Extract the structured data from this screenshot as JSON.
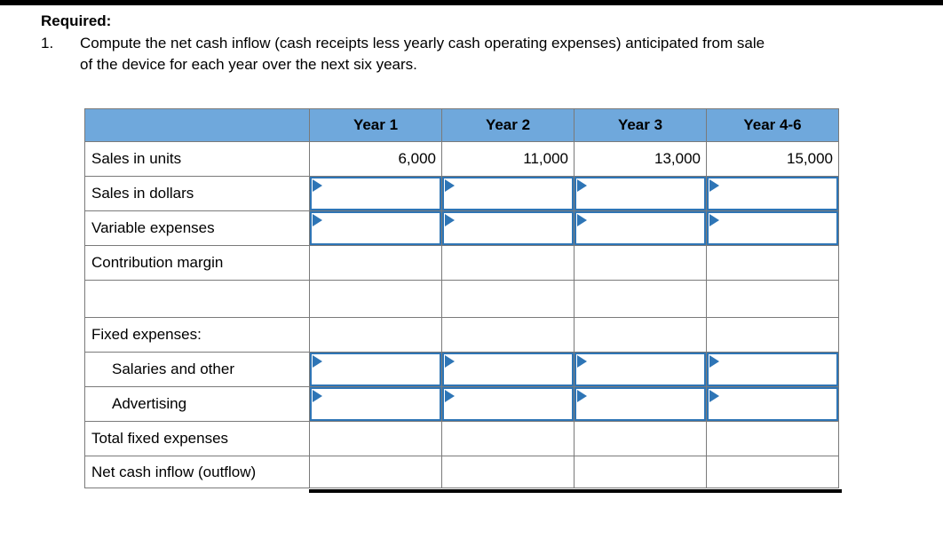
{
  "instructions": {
    "heading": "Required:",
    "item_number": "1.",
    "lines": [
      "Compute the net cash inflow (cash receipts less yearly cash operating expenses) anticipated from sale",
      "of the device for each year over the next six years."
    ]
  },
  "table": {
    "columns": [
      "",
      "Year 1",
      "Year 2",
      "Year 3",
      "Year 4-6"
    ],
    "rows": [
      {
        "label": "Sales in units",
        "cells": "text",
        "indent": false,
        "values": [
          "6,000",
          "11,000",
          "13,000",
          "15,000"
        ]
      },
      {
        "label": "Sales in dollars",
        "cells": "input",
        "indent": false,
        "values": [
          "",
          "",
          "",
          ""
        ]
      },
      {
        "label": "Variable expenses",
        "cells": "input",
        "indent": false,
        "values": [
          "",
          "",
          "",
          ""
        ]
      },
      {
        "label": "Contribution margin",
        "cells": "plain",
        "indent": false,
        "values": [
          "",
          "",
          "",
          ""
        ]
      },
      {
        "label": "",
        "cells": "plain",
        "indent": false,
        "tall": true,
        "values": [
          "",
          "",
          "",
          ""
        ]
      },
      {
        "label": "Fixed expenses:",
        "cells": "plain",
        "indent": false,
        "values": [
          "",
          "",
          "",
          ""
        ]
      },
      {
        "label": "Salaries and other",
        "cells": "input",
        "indent": true,
        "values": [
          "",
          "",
          "",
          ""
        ]
      },
      {
        "label": "Advertising",
        "cells": "input",
        "indent": true,
        "values": [
          "",
          "",
          "",
          ""
        ]
      },
      {
        "label": "Total fixed expenses",
        "cells": "plain",
        "indent": false,
        "values": [
          "",
          "",
          "",
          ""
        ]
      },
      {
        "label": "Net cash inflow  (outflow)",
        "cells": "plain",
        "indent": false,
        "last": true,
        "values": [
          "",
          "",
          "",
          ""
        ]
      }
    ]
  },
  "colors": {
    "header_fill": "#6FA8DC",
    "input_border": "#2E75B6",
    "grid": "#7A7A7A",
    "top_bar": "#000000"
  },
  "icons": {
    "input_flag": "input-flag-icon"
  }
}
